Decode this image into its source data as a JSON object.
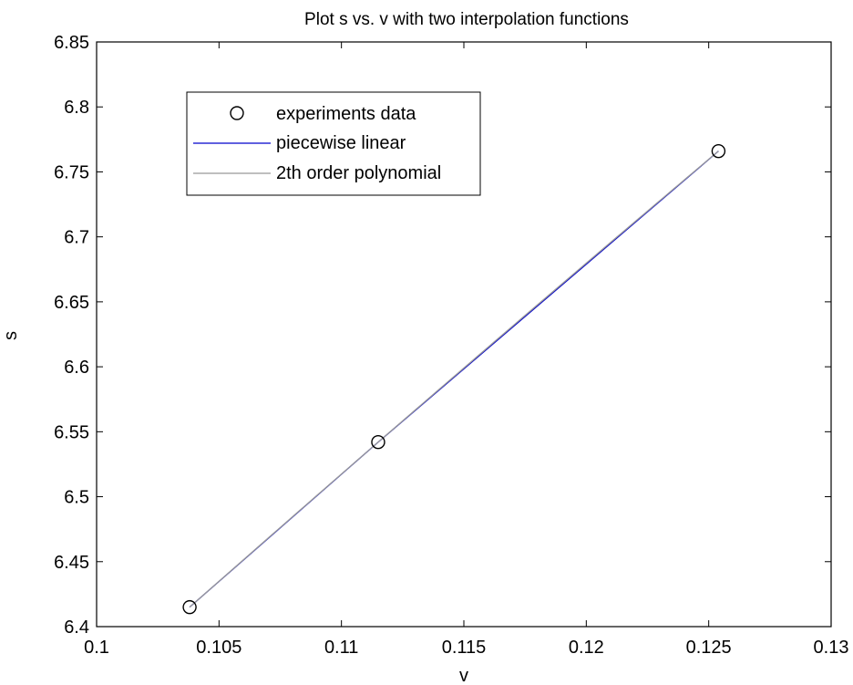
{
  "chart_data": {
    "type": "line",
    "title": "Plot s vs. v with two interpolation functions",
    "xlabel": "v",
    "ylabel": "s",
    "xlim": [
      0.1,
      0.13
    ],
    "ylim": [
      6.4,
      6.85
    ],
    "xticks": [
      0.1,
      0.105,
      0.11,
      0.115,
      0.12,
      0.125,
      0.13
    ],
    "xtick_labels": [
      "0.1",
      "0.105",
      "0.11",
      "0.115",
      "0.12",
      "0.125",
      "0.13"
    ],
    "yticks": [
      6.4,
      6.45,
      6.5,
      6.55,
      6.6,
      6.65,
      6.7,
      6.75,
      6.8,
      6.85
    ],
    "ytick_labels": [
      "6.4",
      "6.45",
      "6.5",
      "6.55",
      "6.6",
      "6.65",
      "6.7",
      "6.75",
      "6.8",
      "6.85"
    ],
    "grid": false,
    "legend_position": "top-left",
    "series": [
      {
        "name": "experiments data",
        "style": "markers",
        "marker": "circle",
        "color": "#000000",
        "x": [
          0.1038,
          0.1115,
          0.1254
        ],
        "y": [
          6.415,
          6.542,
          6.766
        ]
      },
      {
        "name": "piecewise linear",
        "style": "line",
        "color": "#0000cc",
        "x": [
          0.1038,
          0.1115,
          0.1254
        ],
        "y": [
          6.415,
          6.542,
          6.766
        ]
      },
      {
        "name": "2th order polynomial",
        "style": "line",
        "color": "#999999",
        "x": [
          0.1038,
          0.1115,
          0.1254
        ],
        "y": [
          6.415,
          6.542,
          6.766
        ]
      }
    ]
  }
}
